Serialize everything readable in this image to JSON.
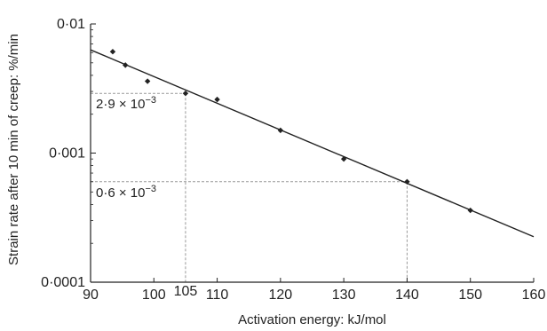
{
  "chart_data": {
    "type": "scatter",
    "title": "",
    "xlabel": "Activation energy: kJ/mol",
    "ylabel": "Strain rate after 10 min of creep: %/min",
    "xlim": [
      90,
      160
    ],
    "ylim": [
      0.0001,
      0.01
    ],
    "y_scale": "log",
    "grid": false,
    "x_ticks": [
      90,
      100,
      110,
      120,
      130,
      140,
      150,
      160
    ],
    "x_tick_labels": [
      "90",
      "100",
      "110",
      "120",
      "130",
      "140",
      "150",
      "160"
    ],
    "y_ticks": [
      0.0001,
      0.001,
      0.01
    ],
    "y_tick_labels": [
      "0·0001",
      "0·001",
      "0·01"
    ],
    "series": [
      {
        "points": [
          {
            "x": 93.5,
            "y": 0.0061
          },
          {
            "x": 95.5,
            "y": 0.0048
          },
          {
            "x": 99,
            "y": 0.0036
          },
          {
            "x": 105,
            "y": 0.0029
          },
          {
            "x": 110,
            "y": 0.0026
          },
          {
            "x": 120,
            "y": 0.0015
          },
          {
            "x": 130,
            "y": 0.0009
          },
          {
            "x": 140,
            "y": 0.0006
          },
          {
            "x": 150,
            "y": 0.00036
          }
        ],
        "color": "#222222"
      }
    ],
    "fit_line": {
      "x": [
        90,
        160
      ],
      "y": [
        0.0063,
        0.000225
      ],
      "color": "#222222"
    },
    "annotations": [
      {
        "label_base": "2·9 × 10",
        "label_exp": "−3",
        "x": 105,
        "y": 0.0029,
        "extra_tick_label": "105"
      },
      {
        "label_base": "0·6 × 10",
        "label_exp": "−3",
        "x": 140,
        "y": 0.0006
      }
    ]
  }
}
